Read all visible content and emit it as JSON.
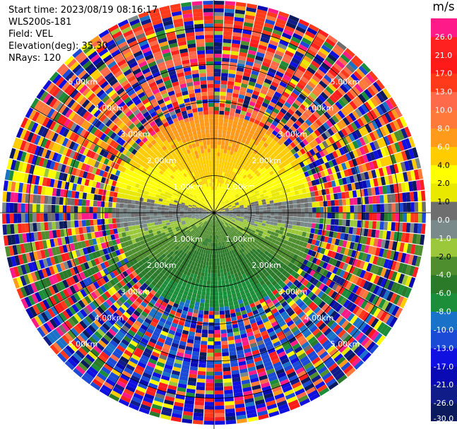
{
  "header": {
    "start_time": "Start time: 2023/08/19 08:16:17",
    "instrument": "WLS200s-181",
    "field": "Field: VEL",
    "elevation": "Elevation(deg): 35.30",
    "nrays": "NRays: 120"
  },
  "chart_data": {
    "type": "heatmap",
    "projection": "polar-ppi",
    "field": "VEL",
    "units": "m/s",
    "nrays": 120,
    "elevation_deg": 35.3,
    "range_rings_km": [
      1,
      2,
      3,
      4,
      5
    ],
    "ring_labels": [
      "1.00km",
      "2.00km",
      "3.00km",
      "4.00km",
      "5.00km"
    ],
    "max_range_km": 5.6,
    "colorbar_boundaries": [
      -30.0,
      -26.0,
      -21.0,
      -17.0,
      -13.0,
      -10.0,
      -8.0,
      -6.0,
      -4.0,
      -2.0,
      -1.0,
      0.0,
      1.0,
      2.0,
      4.0,
      6.0,
      8.0,
      10.0,
      13.0,
      17.0,
      21.0,
      26.0,
      30.0
    ],
    "colorbar_tick_labels": [
      "-30.0",
      "-26.0",
      "-21.0",
      "-17.0",
      "-13.0",
      "-10.0",
      "-8.0",
      "-6.0",
      "-4.0",
      "-2.0",
      "-1.0",
      "0.0",
      "1.0",
      "2.0",
      "4.0",
      "6.0",
      "8.0",
      "10.0",
      "13.0",
      "17.0",
      "21.0",
      "26.0"
    ],
    "colors": [
      "#0a1a5c",
      "#101c88",
      "#0a0ab4",
      "#1010e0",
      "#1a4ad6",
      "#1a72c8",
      "#1c8e3a",
      "#2a7a2a",
      "#4e8e2e",
      "#9ac83a",
      "#7a8a8a",
      "#6e6e6e",
      "#e8e800",
      "#ffff00",
      "#ffcc00",
      "#ff9a1a",
      "#ff7a3a",
      "#ff6a4a",
      "#ff3a1a",
      "#ff1a1a",
      "#ff2020",
      "#ff1a8a"
    ],
    "near_field_pattern": "approaching (negative) to south, receding (positive) to north; noisy beyond ~2.7 km"
  }
}
